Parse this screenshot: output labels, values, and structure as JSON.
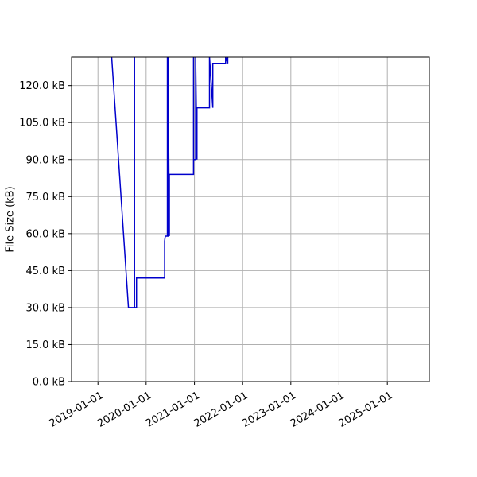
{
  "chart_data": {
    "type": "line",
    "title": "",
    "xlabel": "",
    "ylabel": "File Size (kB)",
    "grid": true,
    "x_axis_type": "date",
    "xlim": [
      "2018-06-15",
      "2025-11-15"
    ],
    "ylim": [
      0,
      131.5
    ],
    "x_ticks": [
      "2019-01-01",
      "2020-01-01",
      "2021-01-01",
      "2022-01-01",
      "2023-01-01",
      "2024-01-01",
      "2025-01-01"
    ],
    "y_ticks": [
      0,
      15,
      30,
      45,
      60,
      75,
      90,
      105,
      120
    ],
    "y_tick_labels": [
      "0.0 kB",
      "15.0 kB",
      "30.0 kB",
      "45.0 kB",
      "60.0 kB",
      "75.0 kB",
      "90.0 kB",
      "105.0 kB",
      "120.0 kB"
    ],
    "series": [
      {
        "color": "#0000cc",
        "x": [
          "2019-04-15",
          "2019-08-20",
          "2019-10-05",
          "2019-10-05",
          "2019-10-05",
          "2019-10-20",
          "2019-10-20",
          "2020-05-20",
          "2020-05-20",
          "2020-05-25",
          "2020-06-10",
          "2020-06-10",
          "2020-06-10",
          "2020-06-15",
          "2020-06-15",
          "2020-06-25",
          "2020-06-25",
          "2020-06-25",
          "2020-12-25",
          "2020-12-25",
          "2020-12-25",
          "2021-01-10",
          "2021-01-10",
          "2021-01-20",
          "2021-01-20",
          "2021-04-25",
          "2021-04-25",
          "2021-05-20",
          "2021-05-20",
          "2021-08-25",
          "2021-08-25",
          "2021-09-10",
          "2021-09-10",
          "2021-09-10"
        ],
        "y": [
          131.5,
          30,
          30,
          131.5,
          30,
          30,
          42,
          42,
          57,
          59,
          59,
          131.5,
          59,
          59,
          131.5,
          59,
          84,
          84,
          84,
          131.5,
          90,
          90,
          131.5,
          90,
          111,
          111,
          131.5,
          111,
          129,
          129,
          131.5,
          129,
          131.5,
          131.5
        ]
      }
    ]
  }
}
